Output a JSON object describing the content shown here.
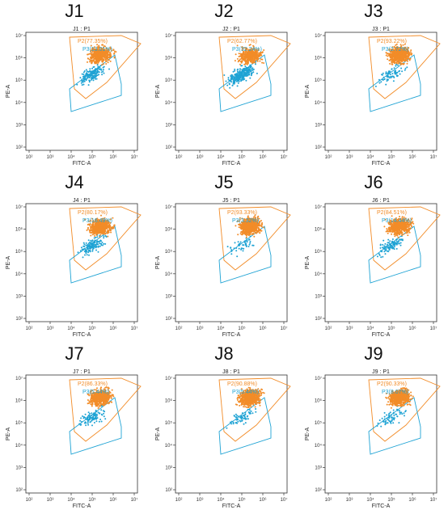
{
  "colors": {
    "p2": "#f28c28",
    "p3": "#1fa3d4",
    "axis": "#333333"
  },
  "chart_data": [
    {
      "type": "scatter",
      "title": "J1",
      "subtitle": "J1 : P1",
      "xlabel": "FITC-A",
      "ylabel": "PE-A",
      "x_ticks": [
        "10²",
        "10³",
        "10⁴",
        "10⁵",
        "10⁶",
        "10⁷"
      ],
      "y_ticks": [
        "10⁷",
        "10⁶",
        "10⁵",
        "10⁴",
        "10³",
        "10²"
      ],
      "gates": [
        {
          "name": "P2",
          "label": "P2(77.35%)",
          "percent": 77.35
        },
        {
          "name": "P3",
          "label": "P3(13.01%)",
          "percent": 13.01
        }
      ]
    },
    {
      "type": "scatter",
      "title": "J2",
      "subtitle": "J2 : P1",
      "xlabel": "FITC-A",
      "ylabel": "PE-A",
      "x_ticks": [
        "10²",
        "10³",
        "10⁴",
        "10⁵",
        "10⁶",
        "10⁷"
      ],
      "y_ticks": [
        "10⁷",
        "10⁶",
        "10⁵",
        "10⁴",
        "10³",
        "10²"
      ],
      "gates": [
        {
          "name": "P2",
          "label": "P2(62.77%)",
          "percent": 62.77
        },
        {
          "name": "P3",
          "label": "P3(32.24%)",
          "percent": 32.24
        }
      ]
    },
    {
      "type": "scatter",
      "title": "J3",
      "subtitle": "J3 : P1",
      "xlabel": "FITC-A",
      "ylabel": "PE-A",
      "x_ticks": [
        "10²",
        "10³",
        "10⁴",
        "10⁵",
        "10⁶",
        "10⁷"
      ],
      "y_ticks": [
        "10⁷",
        "10⁶",
        "10⁵",
        "10⁴",
        "10³",
        "10²"
      ],
      "gates": [
        {
          "name": "P2",
          "label": "P2(93.22%)",
          "percent": 93.22
        },
        {
          "name": "P3",
          "label": "P3(2.72%)",
          "percent": 2.72
        }
      ]
    },
    {
      "type": "scatter",
      "title": "J4",
      "subtitle": "J4 : P1",
      "xlabel": "FITC-A",
      "ylabel": "PE-A",
      "x_ticks": [
        "10²",
        "10³",
        "10⁴",
        "10⁵",
        "10⁶",
        "10⁷"
      ],
      "y_ticks": [
        "10⁷",
        "10⁶",
        "10⁵",
        "10⁴",
        "10³",
        "10²"
      ],
      "gates": [
        {
          "name": "P2",
          "label": "P2(80.17%)",
          "percent": 80.17
        },
        {
          "name": "P3",
          "label": "P3(16.49%)",
          "percent": 16.49
        }
      ]
    },
    {
      "type": "scatter",
      "title": "J5",
      "subtitle": "J5 : P1",
      "xlabel": "FITC-A",
      "ylabel": "PE-A",
      "x_ticks": [
        "10²",
        "10³",
        "10⁴",
        "10⁵",
        "10⁶",
        "10⁷"
      ],
      "y_ticks": [
        "10⁷",
        "10⁶",
        "10⁵",
        "10⁴",
        "10³",
        "10²"
      ],
      "gates": [
        {
          "name": "P2",
          "label": "P2(93.33%)",
          "percent": 93.33
        },
        {
          "name": "P3",
          "label": "P3(3.32%)",
          "percent": 3.32
        }
      ]
    },
    {
      "type": "scatter",
      "title": "J6",
      "subtitle": "J6 : P1",
      "xlabel": "FITC-A",
      "ylabel": "PE-A",
      "x_ticks": [
        "10²",
        "10³",
        "10⁴",
        "10⁵",
        "10⁶",
        "10⁷"
      ],
      "y_ticks": [
        "10⁷",
        "10⁶",
        "10⁵",
        "10⁴",
        "10³",
        "10²"
      ],
      "gates": [
        {
          "name": "P2",
          "label": "P2(84.51%)",
          "percent": 84.51
        },
        {
          "name": "P3",
          "label": "P3(14.44%)",
          "percent": 14.44
        }
      ]
    },
    {
      "type": "scatter",
      "title": "J7",
      "subtitle": "J7 : P1",
      "xlabel": "FITC-A",
      "ylabel": "PE-A",
      "x_ticks": [
        "10²",
        "10³",
        "10⁴",
        "10⁵",
        "10⁶",
        "10⁷"
      ],
      "y_ticks": [
        "10⁷",
        "10⁶",
        "10⁵",
        "10⁴",
        "10³",
        "10²"
      ],
      "gates": [
        {
          "name": "P2",
          "label": "P2(86.33%)",
          "percent": 86.33
        },
        {
          "name": "P3",
          "label": "P3(5.44%)",
          "percent": 5.44
        }
      ]
    },
    {
      "type": "scatter",
      "title": "J8",
      "subtitle": "J8 : P1",
      "xlabel": "FITC-A",
      "ylabel": "PE-A",
      "x_ticks": [
        "10²",
        "10³",
        "10⁴",
        "10⁵",
        "10⁶",
        "10⁷"
      ],
      "y_ticks": [
        "10⁷",
        "10⁶",
        "10⁵",
        "10⁴",
        "10³",
        "10²"
      ],
      "gates": [
        {
          "name": "P2",
          "label": "P2(90.88%)",
          "percent": 90.88
        },
        {
          "name": "P3",
          "label": "P3(5.44%)",
          "percent": 5.44
        }
      ]
    },
    {
      "type": "scatter",
      "title": "J9",
      "subtitle": "J9 : P1",
      "xlabel": "FITC-A",
      "ylabel": "PE-A",
      "x_ticks": [
        "10²",
        "10³",
        "10⁴",
        "10⁵",
        "10⁶",
        "10⁷"
      ],
      "y_ticks": [
        "10⁷",
        "10⁶",
        "10⁵",
        "10⁴",
        "10³",
        "10²"
      ],
      "gates": [
        {
          "name": "P2",
          "label": "P2(90.33%)",
          "percent": 90.33
        },
        {
          "name": "P3",
          "label": "P3(8.07%)",
          "percent": 8.07
        }
      ]
    }
  ]
}
